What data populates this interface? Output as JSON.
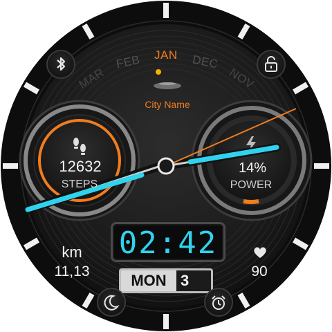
{
  "watch": {
    "months": {
      "selected": "JAN",
      "left_near": "FEB",
      "left_far": "MAR",
      "right_near": "DEC",
      "right_far": "NOV"
    },
    "city_name": "City Name",
    "steps": {
      "value": "12632",
      "label": "STEPS"
    },
    "power": {
      "value": "14%",
      "label": "POWER",
      "level": 0.14
    },
    "time": "02:42",
    "distance": {
      "unit": "km",
      "value": "11,13"
    },
    "heart_rate": {
      "value": "90"
    },
    "date": {
      "day_of_week": "MON",
      "day": "3"
    },
    "colors": {
      "accent_cyan": "#2fd3ee",
      "accent_orange": "#f07d1e",
      "bezel": "#0f0f0f",
      "dial": "#1e1e1e"
    },
    "icons": {
      "top_left": "bluetooth-icon",
      "top_right": "lock-icon",
      "bottom_left": "moon-icon",
      "bottom_right": "alarm-clock-icon",
      "heart": "heart-icon",
      "steps": "footprints-icon",
      "power": "lightning-icon"
    }
  }
}
